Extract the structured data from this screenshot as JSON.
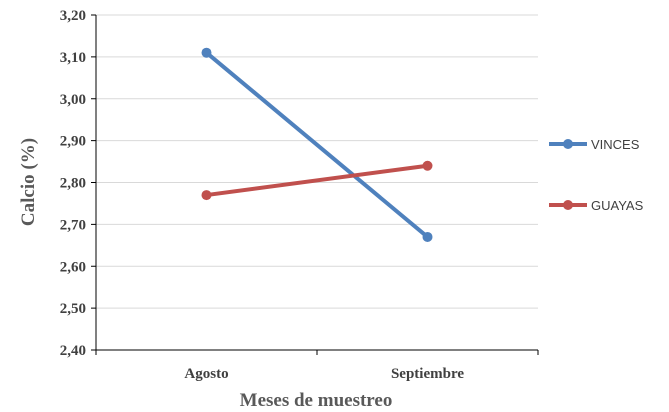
{
  "chart_data": {
    "type": "line",
    "title": "",
    "xlabel": "Meses de muestreo",
    "ylabel": "Calcio (%)",
    "categories": [
      "Agosto",
      "Septiembre"
    ],
    "ylim": [
      2.4,
      3.2
    ],
    "yticks": [
      "2,40",
      "2,50",
      "2,60",
      "2,70",
      "2,80",
      "2,90",
      "3,00",
      "3,10",
      "3,20"
    ],
    "grid": "horizontal",
    "legend_position": "right",
    "series": [
      {
        "name": "VINCES",
        "values": [
          3.11,
          2.67
        ],
        "color": "#4F81BD"
      },
      {
        "name": "GUAYAS",
        "values": [
          2.77,
          2.84
        ],
        "color": "#C0504D"
      }
    ]
  }
}
